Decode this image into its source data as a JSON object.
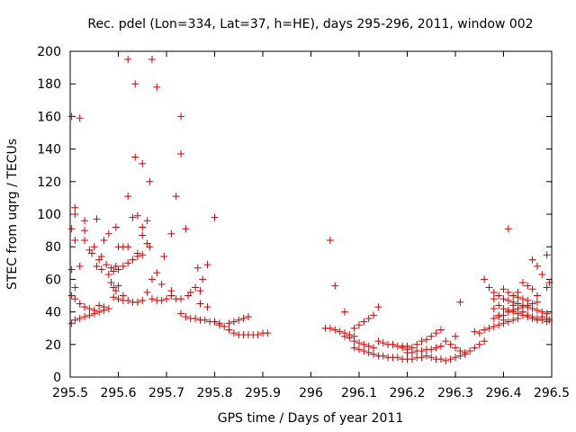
{
  "chart_data": {
    "type": "scatter",
    "title": "Rec. pdel (Lon=334, Lat=37, h=HE), days 295-296, 2011, window 002",
    "xlabel": "GPS time / Days of year 2011",
    "ylabel": "STEC from uqrg / TECUs",
    "xlim": [
      295.5,
      296.5
    ],
    "ylim": [
      0,
      200
    ],
    "xticks": [
      295.5,
      295.6,
      295.7,
      295.8,
      295.9,
      296,
      296.1,
      296.2,
      296.3,
      296.4,
      296.5
    ],
    "xtick_labels": [
      "295.5",
      "295.6",
      "295.7",
      "295.8",
      "295.9",
      "296",
      "296.1",
      "296.2",
      "296.3",
      "296.4",
      "296.5"
    ],
    "yticks": [
      0,
      20,
      40,
      60,
      80,
      100,
      120,
      140,
      160,
      180,
      200
    ],
    "ytick_labels": [
      "0",
      "20",
      "40",
      "60",
      "80",
      "100",
      "120",
      "140",
      "160",
      "180",
      "200"
    ],
    "grid": false,
    "marker": "plus",
    "marker_color": "#cc0000",
    "points": [
      [
        295.503,
        160
      ],
      [
        295.52,
        159
      ],
      [
        295.503,
        91
      ],
      [
        295.51,
        104
      ],
      [
        295.51,
        100
      ],
      [
        295.53,
        96
      ],
      [
        295.51,
        84
      ],
      [
        295.53,
        90
      ],
      [
        295.53,
        84
      ],
      [
        295.503,
        66
      ],
      [
        295.52,
        68
      ],
      [
        295.51,
        55
      ],
      [
        295.503,
        50
      ],
      [
        295.51,
        48
      ],
      [
        295.503,
        33
      ],
      [
        295.51,
        35
      ],
      [
        295.52,
        36
      ],
      [
        295.53,
        37
      ],
      [
        295.54,
        38
      ],
      [
        295.55,
        39
      ],
      [
        295.56,
        40
      ],
      [
        295.57,
        41
      ],
      [
        295.58,
        42
      ],
      [
        295.52,
        45
      ],
      [
        295.53,
        43
      ],
      [
        295.54,
        42
      ],
      [
        295.55,
        41
      ],
      [
        295.56,
        44
      ],
      [
        295.57,
        43
      ],
      [
        295.54,
        78
      ],
      [
        295.545,
        76
      ],
      [
        295.55,
        80
      ],
      [
        295.555,
        97
      ],
      [
        295.56,
        72
      ],
      [
        295.565,
        74
      ],
      [
        295.57,
        84
      ],
      [
        295.555,
        68
      ],
      [
        295.565,
        66
      ],
      [
        295.575,
        69
      ],
      [
        295.58,
        63
      ],
      [
        295.585,
        67
      ],
      [
        295.59,
        65
      ],
      [
        295.595,
        68
      ],
      [
        295.58,
        88
      ],
      [
        295.595,
        92
      ],
      [
        295.6,
        80
      ],
      [
        295.61,
        80
      ],
      [
        295.62,
        80
      ],
      [
        295.585,
        58
      ],
      [
        295.59,
        55
      ],
      [
        295.595,
        53
      ],
      [
        295.6,
        56
      ],
      [
        295.61,
        50
      ],
      [
        295.59,
        49
      ],
      [
        295.6,
        48
      ],
      [
        295.61,
        47
      ],
      [
        295.62,
        47
      ],
      [
        295.63,
        46
      ],
      [
        295.64,
        46
      ],
      [
        295.65,
        47
      ],
      [
        295.6,
        66
      ],
      [
        295.61,
        68
      ],
      [
        295.62,
        70
      ],
      [
        295.63,
        72
      ],
      [
        295.64,
        74
      ],
      [
        295.62,
        111
      ],
      [
        295.63,
        98
      ],
      [
        295.64,
        99
      ],
      [
        295.65,
        92
      ],
      [
        295.65,
        87
      ],
      [
        295.66,
        82
      ],
      [
        295.62,
        195
      ],
      [
        295.635,
        180
      ],
      [
        295.67,
        195
      ],
      [
        295.68,
        178
      ],
      [
        295.635,
        135
      ],
      [
        295.65,
        131
      ],
      [
        295.665,
        120
      ],
      [
        295.64,
        76
      ],
      [
        295.65,
        75
      ],
      [
        295.66,
        96
      ],
      [
        295.665,
        80
      ],
      [
        295.67,
        60
      ],
      [
        295.66,
        52
      ],
      [
        295.68,
        64
      ],
      [
        295.69,
        57
      ],
      [
        295.695,
        74
      ],
      [
        295.67,
        48
      ],
      [
        295.68,
        47
      ],
      [
        295.69,
        47
      ],
      [
        295.7,
        48
      ],
      [
        295.71,
        50
      ],
      [
        295.72,
        48
      ],
      [
        295.71,
        88
      ],
      [
        295.72,
        111
      ],
      [
        295.73,
        160
      ],
      [
        295.73,
        137
      ],
      [
        295.74,
        91
      ],
      [
        295.71,
        53
      ],
      [
        295.73,
        48
      ],
      [
        295.745,
        50
      ],
      [
        295.75,
        52
      ],
      [
        295.76,
        55
      ],
      [
        295.765,
        67
      ],
      [
        295.77,
        53
      ],
      [
        295.775,
        60
      ],
      [
        295.785,
        69
      ],
      [
        295.73,
        39
      ],
      [
        295.74,
        37
      ],
      [
        295.75,
        36
      ],
      [
        295.76,
        36
      ],
      [
        295.77,
        35
      ],
      [
        295.78,
        35
      ],
      [
        295.79,
        34
      ],
      [
        295.8,
        34
      ],
      [
        295.81,
        33
      ],
      [
        295.8,
        98
      ],
      [
        295.785,
        43
      ],
      [
        295.77,
        45
      ],
      [
        295.81,
        32
      ],
      [
        295.82,
        31
      ],
      [
        295.83,
        33
      ],
      [
        295.84,
        34
      ],
      [
        295.85,
        35
      ],
      [
        295.86,
        36
      ],
      [
        295.87,
        37
      ],
      [
        295.83,
        29
      ],
      [
        295.84,
        27
      ],
      [
        295.85,
        26
      ],
      [
        295.86,
        26
      ],
      [
        295.87,
        26
      ],
      [
        295.88,
        26
      ],
      [
        295.89,
        26
      ],
      [
        295.9,
        27
      ],
      [
        295.91,
        27
      ],
      [
        296.03,
        30
      ],
      [
        296.04,
        30
      ],
      [
        296.05,
        29
      ],
      [
        296.06,
        28
      ],
      [
        296.07,
        27
      ],
      [
        296.08,
        26
      ],
      [
        296.09,
        25
      ],
      [
        296.04,
        84
      ],
      [
        296.05,
        56
      ],
      [
        296.07,
        40
      ],
      [
        296.07,
        25
      ],
      [
        296.08,
        24
      ],
      [
        296.09,
        22
      ],
      [
        296.1,
        21
      ],
      [
        296.11,
        20
      ],
      [
        296.12,
        19
      ],
      [
        296.13,
        18
      ],
      [
        296.09,
        30
      ],
      [
        296.1,
        32
      ],
      [
        296.11,
        34
      ],
      [
        296.12,
        36
      ],
      [
        296.13,
        38
      ],
      [
        296.14,
        43
      ],
      [
        296.09,
        18
      ],
      [
        296.1,
        17
      ],
      [
        296.11,
        16
      ],
      [
        296.12,
        15
      ],
      [
        296.13,
        14
      ],
      [
        296.14,
        13
      ],
      [
        296.15,
        13
      ],
      [
        296.16,
        12
      ],
      [
        296.17,
        12
      ],
      [
        296.18,
        12
      ],
      [
        296.14,
        22
      ],
      [
        296.15,
        21
      ],
      [
        296.16,
        20
      ],
      [
        296.17,
        20
      ],
      [
        296.18,
        19
      ],
      [
        296.19,
        19
      ],
      [
        296.2,
        19
      ],
      [
        296.19,
        11
      ],
      [
        296.2,
        11
      ],
      [
        296.21,
        11
      ],
      [
        296.22,
        12
      ],
      [
        296.23,
        12
      ],
      [
        296.24,
        13
      ],
      [
        296.25,
        12
      ],
      [
        296.26,
        11
      ],
      [
        296.27,
        11
      ],
      [
        296.28,
        10
      ],
      [
        296.19,
        18
      ],
      [
        296.2,
        17
      ],
      [
        296.21,
        18
      ],
      [
        296.22,
        20
      ],
      [
        296.23,
        22
      ],
      [
        296.24,
        23
      ],
      [
        296.25,
        25
      ],
      [
        296.26,
        27
      ],
      [
        296.27,
        29
      ],
      [
        296.2,
        15
      ],
      [
        296.21,
        15
      ],
      [
        296.22,
        16
      ],
      [
        296.23,
        16
      ],
      [
        296.24,
        17
      ],
      [
        296.25,
        17
      ],
      [
        296.26,
        18
      ],
      [
        296.27,
        19
      ],
      [
        296.28,
        22
      ],
      [
        296.29,
        20
      ],
      [
        296.3,
        25
      ],
      [
        296.3,
        18
      ],
      [
        296.31,
        16
      ],
      [
        296.31,
        46
      ],
      [
        296.32,
        15
      ],
      [
        296.29,
        11
      ],
      [
        296.3,
        12
      ],
      [
        296.31,
        13
      ],
      [
        296.32,
        14
      ],
      [
        296.33,
        16
      ],
      [
        296.34,
        18
      ],
      [
        296.35,
        20
      ],
      [
        296.36,
        22
      ],
      [
        296.36,
        60
      ],
      [
        296.37,
        55
      ],
      [
        296.38,
        48
      ],
      [
        296.38,
        42
      ],
      [
        296.39,
        38
      ],
      [
        296.4,
        35
      ],
      [
        296.34,
        28
      ],
      [
        296.35,
        27
      ],
      [
        296.36,
        29
      ],
      [
        296.37,
        30
      ],
      [
        296.38,
        31
      ],
      [
        296.39,
        32
      ],
      [
        296.4,
        33
      ],
      [
        296.41,
        34
      ],
      [
        296.42,
        35
      ],
      [
        296.43,
        36
      ],
      [
        296.38,
        36
      ],
      [
        296.39,
        37
      ],
      [
        296.4,
        38
      ],
      [
        296.41,
        40
      ],
      [
        296.42,
        41
      ],
      [
        296.43,
        42
      ],
      [
        296.44,
        43
      ],
      [
        296.45,
        44
      ],
      [
        296.46,
        45
      ],
      [
        296.47,
        46
      ],
      [
        296.38,
        52
      ],
      [
        296.39,
        50
      ],
      [
        296.4,
        48
      ],
      [
        296.41,
        47
      ],
      [
        296.42,
        46
      ],
      [
        296.43,
        45
      ],
      [
        296.44,
        44
      ],
      [
        296.45,
        43
      ],
      [
        296.46,
        42
      ],
      [
        296.47,
        41
      ],
      [
        296.48,
        40
      ],
      [
        296.49,
        39
      ],
      [
        296.4,
        54
      ],
      [
        296.41,
        52
      ],
      [
        296.42,
        50
      ],
      [
        296.43,
        49
      ],
      [
        296.44,
        48
      ],
      [
        296.45,
        47
      ],
      [
        296.39,
        44
      ],
      [
        296.4,
        42
      ],
      [
        296.41,
        41
      ],
      [
        296.42,
        40
      ],
      [
        296.43,
        39
      ],
      [
        296.44,
        38
      ],
      [
        296.45,
        37
      ],
      [
        296.46,
        36
      ],
      [
        296.47,
        35
      ],
      [
        296.48,
        35
      ],
      [
        296.49,
        34
      ],
      [
        296.41,
        91
      ],
      [
        296.46,
        72
      ],
      [
        296.47,
        68
      ],
      [
        296.48,
        63
      ],
      [
        296.49,
        75
      ],
      [
        296.495,
        58
      ],
      [
        296.49,
        55
      ],
      [
        296.43,
        52
      ],
      [
        296.44,
        58
      ],
      [
        296.45,
        56
      ],
      [
        296.46,
        54
      ],
      [
        296.47,
        50
      ],
      [
        296.42,
        44
      ],
      [
        296.43,
        42
      ],
      [
        296.44,
        40
      ],
      [
        296.45,
        38
      ],
      [
        296.46,
        37
      ],
      [
        296.47,
        36
      ],
      [
        296.48,
        37
      ],
      [
        296.49,
        36
      ],
      [
        296.495,
        35
      ]
    ]
  }
}
